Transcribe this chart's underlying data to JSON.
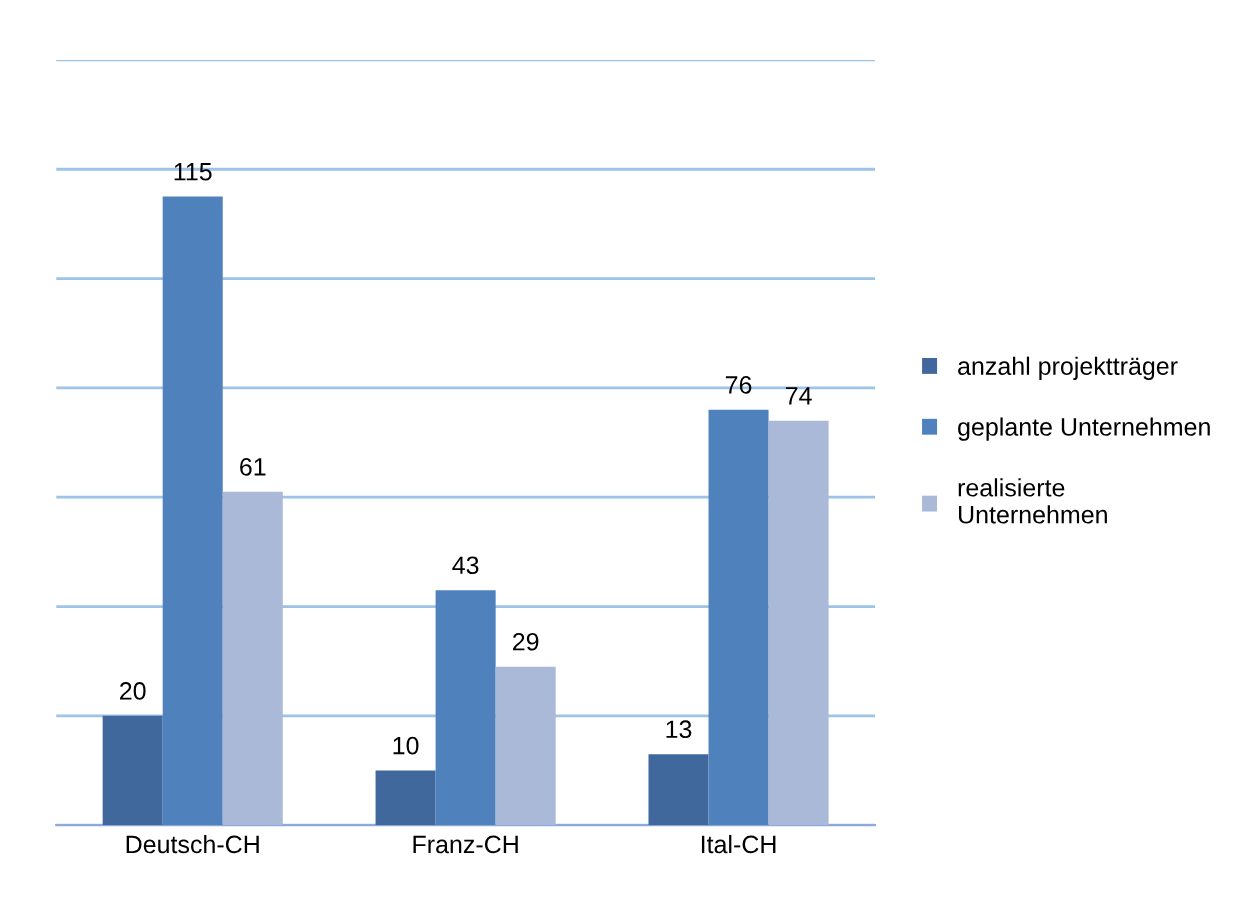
{
  "chart_data": {
    "type": "bar",
    "categories": [
      "Deutsch-CH",
      "Franz-CH",
      "Ital-CH"
    ],
    "series": [
      {
        "name": "anzahl projektträger",
        "color": "#41689c",
        "values": [
          20,
          10,
          13
        ]
      },
      {
        "name": "geplante Unternehmen",
        "color": "#4f81bd",
        "values": [
          115,
          43,
          76
        ]
      },
      {
        "name": "realisierte\nUnternehmen",
        "color": "#aab9d8",
        "values": [
          61,
          29,
          74
        ]
      }
    ],
    "ylim": [
      0,
      140
    ],
    "yticks": [
      {
        "value": 0,
        "label": null
      },
      {
        "value": 20,
        "label": null
      },
      {
        "value": 40,
        "label": null
      },
      {
        "value": 60,
        "label": null
      },
      {
        "value": 80,
        "label": null
      },
      {
        "value": 100,
        "label": null
      },
      {
        "value": 120,
        "label": null
      },
      {
        "value": 140,
        "label": null
      }
    ],
    "tick_labels": "x",
    "grid": "y",
    "legend": "right",
    "data_labels": true
  }
}
